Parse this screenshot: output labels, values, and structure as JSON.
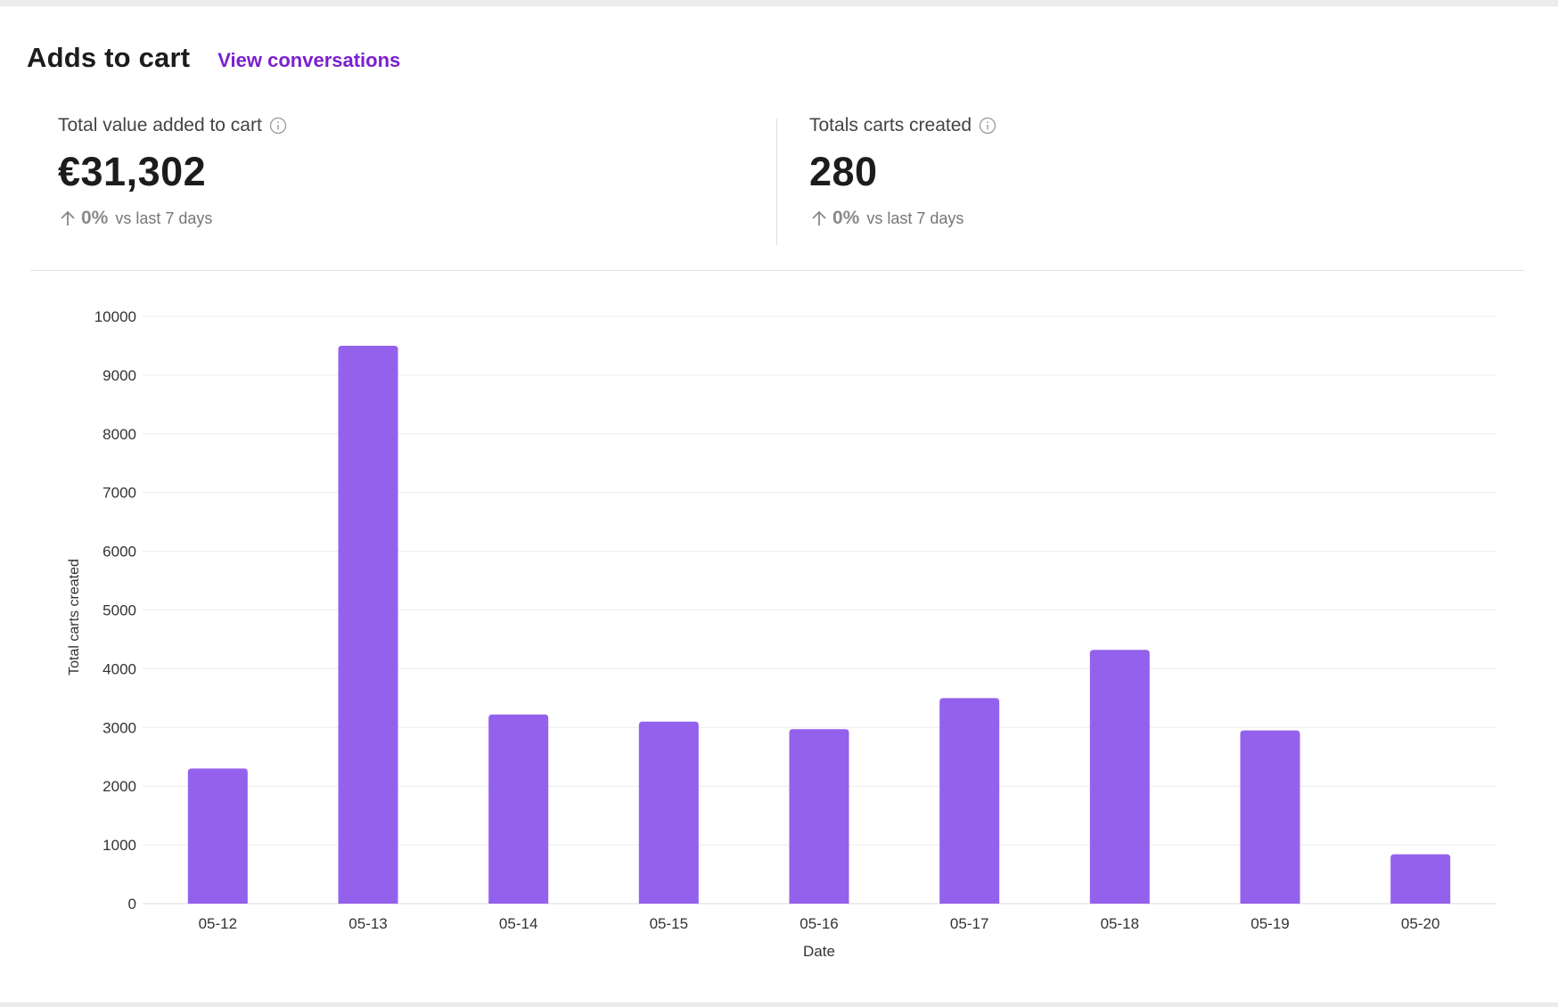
{
  "header": {
    "title": "Adds to cart",
    "link": "View conversations"
  },
  "stats": [
    {
      "label": "Total value added to cart",
      "value": "€31,302",
      "change": "0%",
      "comparison": "vs last 7 days"
    },
    {
      "label": "Totals carts created",
      "value": "280",
      "change": "0%",
      "comparison": "vs last 7 days"
    }
  ],
  "colors": {
    "accent": "#7b1fd0",
    "bar": "#9461ec"
  },
  "chart_data": {
    "type": "bar",
    "categories": [
      "05-12",
      "05-13",
      "05-14",
      "05-15",
      "05-16",
      "05-17",
      "05-18",
      "05-19",
      "05-20"
    ],
    "values": [
      2300,
      9500,
      3220,
      3100,
      2970,
      3500,
      4320,
      2950,
      840
    ],
    "xlabel": "Date",
    "ylabel": "Total carts created",
    "ylim": [
      0,
      10000
    ],
    "yticks": [
      0,
      1000,
      2000,
      3000,
      4000,
      5000,
      6000,
      7000,
      8000,
      9000,
      10000
    ],
    "grid": true
  }
}
